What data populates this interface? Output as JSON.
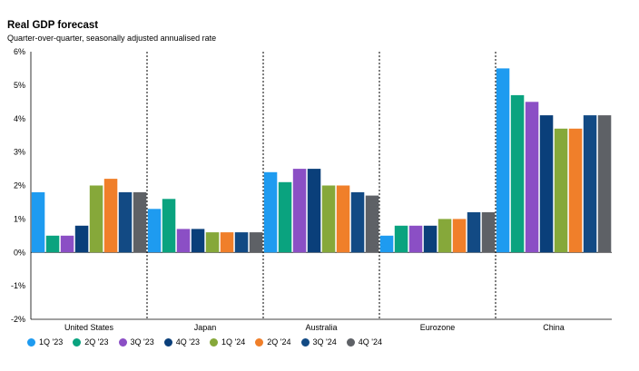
{
  "chart_data": {
    "type": "bar",
    "title": "Real GDP forecast",
    "subtitle": "Quarter-over-quarter, seasonally adjusted annualised rate",
    "categories": [
      "United States",
      "Japan",
      "Australia",
      "Eurozone",
      "China"
    ],
    "ylim": [
      -2,
      6
    ],
    "yticks": [
      "6%",
      "5%",
      "4%",
      "3%",
      "2%",
      "1%",
      "0%",
      "-1%",
      "-2%"
    ],
    "ytick_values": [
      6,
      5,
      4,
      3,
      2,
      1,
      0,
      -1,
      -2
    ],
    "grid": false,
    "legend_position": "bottom",
    "series": [
      {
        "name": "1Q '23",
        "color": "#1e9bf0",
        "values": [
          1.8,
          1.3,
          2.4,
          0.5,
          5.5
        ]
      },
      {
        "name": "2Q '23",
        "color": "#0aa37f",
        "values": [
          0.5,
          1.6,
          2.1,
          0.8,
          4.7
        ]
      },
      {
        "name": "3Q '23",
        "color": "#8b4fc5",
        "values": [
          0.5,
          0.7,
          2.5,
          0.8,
          4.5
        ]
      },
      {
        "name": "4Q '23",
        "color": "#0a3f7a",
        "values": [
          0.8,
          0.7,
          2.5,
          0.8,
          4.1
        ]
      },
      {
        "name": "1Q '24",
        "color": "#86a83a",
        "values": [
          2.0,
          0.6,
          2.0,
          1.0,
          3.7
        ]
      },
      {
        "name": "2Q '24",
        "color": "#f07f2a",
        "values": [
          2.2,
          0.6,
          2.0,
          1.0,
          3.7
        ]
      },
      {
        "name": "3Q '24",
        "color": "#124a84",
        "values": [
          1.8,
          0.6,
          1.8,
          1.2,
          4.1
        ]
      },
      {
        "name": "4Q '24",
        "color": "#5e6166",
        "values": [
          1.8,
          0.6,
          1.7,
          1.2,
          4.1
        ]
      }
    ]
  }
}
